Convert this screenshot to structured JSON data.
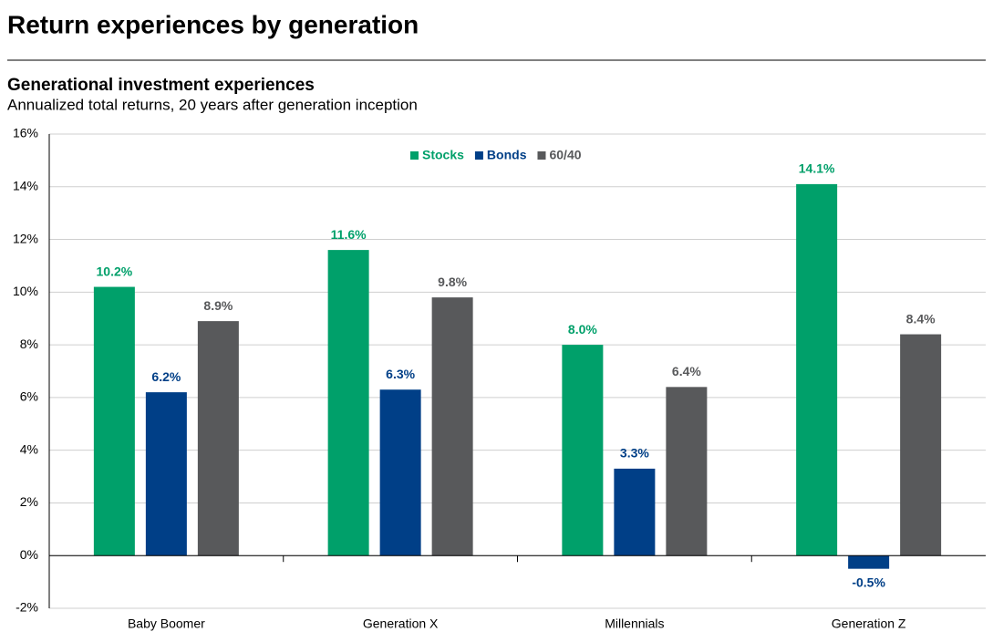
{
  "chart_data": {
    "type": "bar",
    "title": "Return experiences by generation",
    "subtitle": "Generational investment experiences",
    "description": "Annualized total returns, 20 years after generation inception",
    "categories": [
      "Baby Boomer",
      "Generation X",
      "Millennials",
      "Generation Z"
    ],
    "series": [
      {
        "name": "Stocks",
        "color": "#00a06a",
        "values": [
          10.2,
          11.6,
          8.0,
          14.1
        ],
        "value_labels": [
          "10.2%",
          "11.6%",
          "8.0%",
          "14.1%"
        ]
      },
      {
        "name": "Bonds",
        "color": "#003f87",
        "values": [
          6.2,
          6.3,
          3.3,
          -0.5
        ],
        "value_labels": [
          "6.2%",
          "6.3%",
          "3.3%",
          "-0.5%"
        ]
      },
      {
        "name": "60/40",
        "color": "#58595b",
        "values": [
          8.9,
          9.8,
          6.4,
          8.4
        ],
        "value_labels": [
          "8.9%",
          "9.8%",
          "6.4%",
          "8.4%"
        ]
      }
    ],
    "ylim": [
      -2,
      16
    ],
    "yticks": [
      {
        "value": -2,
        "label": "-2%"
      },
      {
        "value": 0,
        "label": "0%"
      },
      {
        "value": 2,
        "label": "2%"
      },
      {
        "value": 4,
        "label": "4%"
      },
      {
        "value": 6,
        "label": "6%"
      },
      {
        "value": 8,
        "label": "8%"
      },
      {
        "value": 10,
        "label": "10%"
      },
      {
        "value": 12,
        "label": "12%"
      },
      {
        "value": 14,
        "label": "14%"
      },
      {
        "value": 16,
        "label": "16%"
      }
    ],
    "grid": true,
    "legend": "top"
  }
}
